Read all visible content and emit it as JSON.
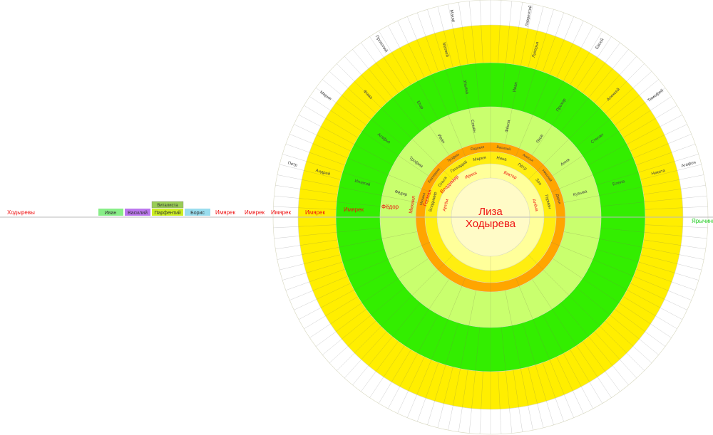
{
  "center": {
    "line1": "Лиза",
    "line2": "Ходырева"
  },
  "colors": {
    "center": "#fffbc7",
    "ring1": "#ffff9a",
    "ring2": "#ffee10",
    "ring3": "#ffa500",
    "ring4": "#c9ff6e",
    "ring5": "#33ee00",
    "ring6": "#ffee00",
    "outer": "#ffffff",
    "red": "#ee1111",
    "green": "#22cc22",
    "grey": "#444444"
  },
  "rings": {
    "ring1_labels": [
      "Артём",
      "Ирина",
      "Виктор",
      "Алёна"
    ],
    "ring2_labels": [
      "Владимир",
      "Ольга",
      "Геннадий",
      "Мария",
      "Нина",
      "Пётр",
      "Зоя",
      "Герман"
    ],
    "ring3_labels": [
      "Михаил",
      "Екатерина",
      "Трофим",
      "Евдокия",
      "Василий",
      "Анисья",
      "Николай",
      "Дарья"
    ],
    "ring4_labels": [
      "Фёдор",
      "Трофим",
      "Иван",
      "Семён",
      "Фёкла",
      "Яков",
      "Анна",
      "Кузьма"
    ],
    "ring5_labels": [
      "Игнатий",
      "Агафья",
      "Егор",
      "Ульяна",
      "Иван",
      "Прохор",
      "Степан",
      "Елена"
    ],
    "ring6_labels": [
      "Андрей",
      "Фома",
      "Матвей",
      "Лукерья",
      "Алексей",
      "Никита"
    ],
    "outer_labels": [
      "Петр",
      "Мария",
      "Прокопий",
      "Макар",
      "Лаврентий",
      "Евсей",
      "Тимофей",
      "Агафон"
    ]
  },
  "surname_line": {
    "left": "Ходыревы",
    "right": "Ярычины",
    "repeats": [
      "Имярек",
      "Имярек",
      "Имярек",
      "Имярек",
      "Имярек"
    ],
    "inner_red": [
      "Фёдор",
      "Михаил",
      "Герман",
      "Владимир"
    ]
  },
  "legend": {
    "items": [
      {
        "label": "Иван",
        "color": "#88ee88"
      },
      {
        "label": "Василий",
        "color": "#bb77ee"
      },
      {
        "label": "Парфентий",
        "color": "#ccee22"
      },
      {
        "label": "Борис",
        "color": "#99ddee"
      }
    ],
    "top": {
      "label": "Виталиста",
      "color": "#99cc55"
    }
  }
}
